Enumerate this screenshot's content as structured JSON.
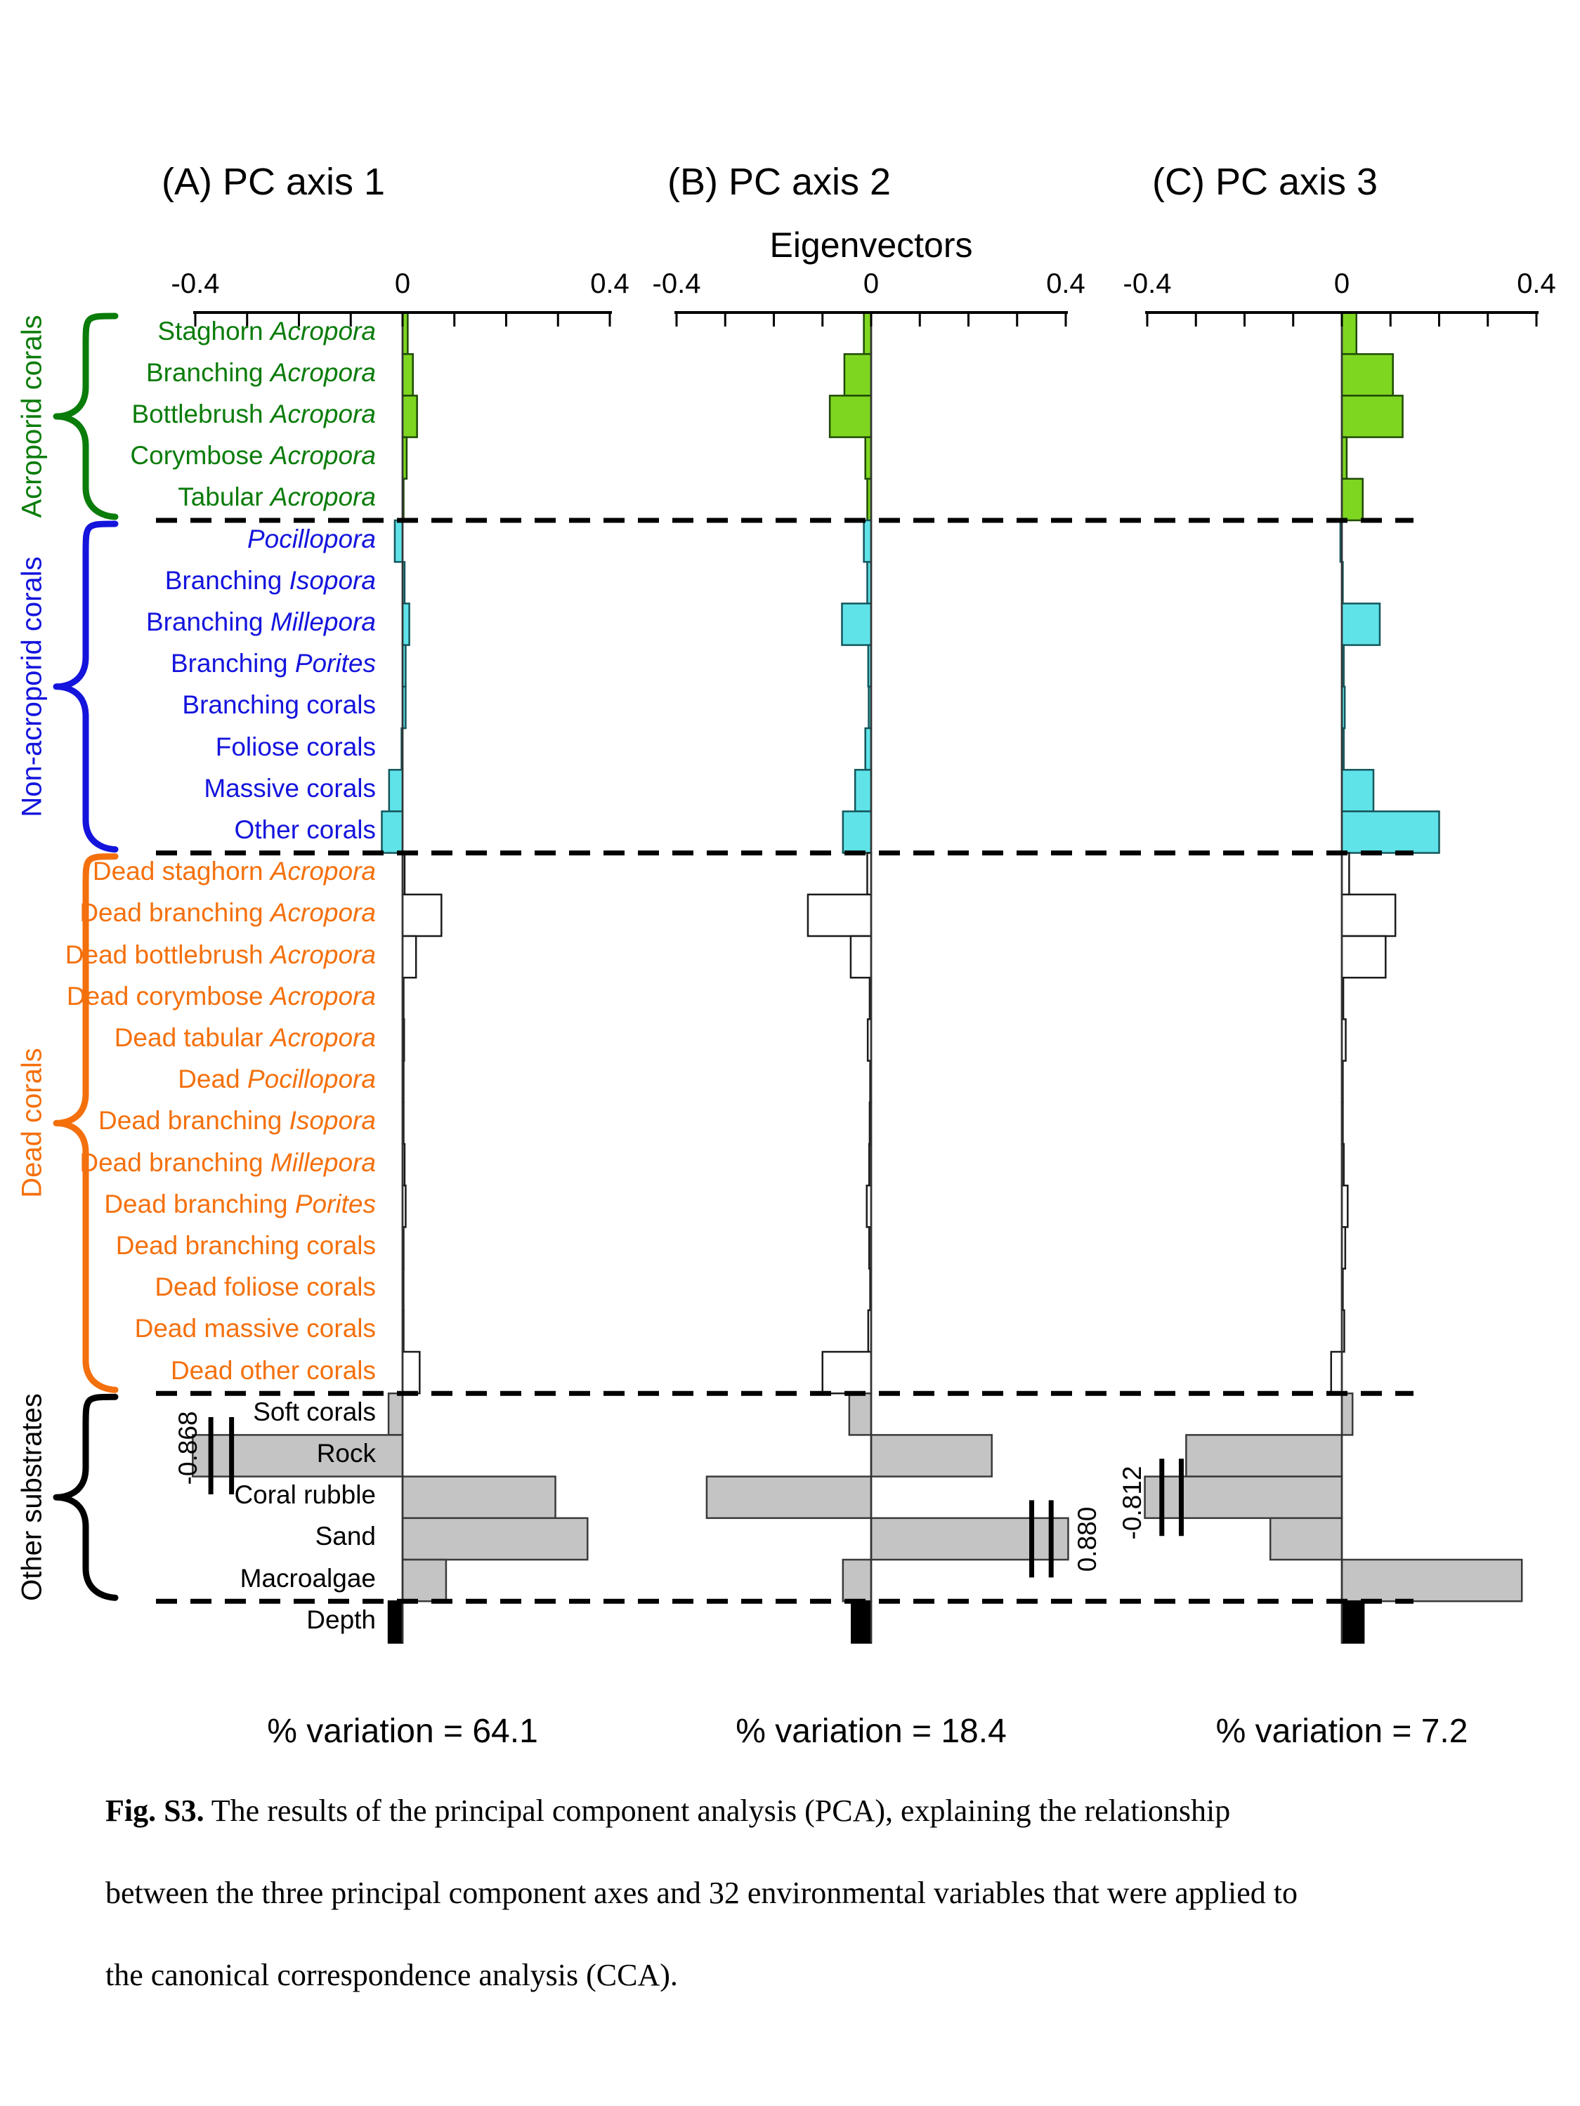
{
  "figure": {
    "panel_titles": [
      "(A) PC axis 1",
      "(B) PC axis 2",
      "(C) PC axis 3"
    ],
    "axis_title": "Eigenvectors",
    "axis_ticks": [
      "-0.4",
      "0",
      "0.4"
    ],
    "variation_labels": [
      "% variation = 64.1",
      "% variation  = 18.4",
      "% variation  = 7.2"
    ],
    "offscale_labels": [
      "-0.868",
      "0.880",
      "-0.812"
    ],
    "groups": [
      {
        "label": "Acroporid corals",
        "color": "#0a7c0a",
        "row_start": 0,
        "row_end": 4,
        "bar_fill": "#7ed621",
        "bar_stroke": "#1f4a05"
      },
      {
        "label": "Non-acroporid corals",
        "color": "#1414dd",
        "row_start": 5,
        "row_end": 12,
        "bar_fill": "#5fe3e8",
        "bar_stroke": "#14565c"
      },
      {
        "label": "Dead corals",
        "color": "#f4700d",
        "row_start": 13,
        "row_end": 25,
        "bar_fill": "#ffffff",
        "bar_stroke": "#1a1a1a"
      },
      {
        "label": "Other substrates",
        "color": "#000000",
        "row_start": 26,
        "row_end": 30,
        "bar_fill": "#c4c4c4",
        "bar_stroke": "#3a3a3a"
      }
    ],
    "depth_bar_fill": "#000000",
    "rows": [
      {
        "plain": "Staghorn ",
        "italic": "Acropora"
      },
      {
        "plain": "Branching ",
        "italic": "Acropora"
      },
      {
        "plain": "Bottlebrush ",
        "italic": "Acropora"
      },
      {
        "plain": "Corymbose ",
        "italic": "Acropora"
      },
      {
        "plain": "Tabular ",
        "italic": "Acropora"
      },
      {
        "plain": "",
        "italic": "Pocillopora"
      },
      {
        "plain": "Branching ",
        "italic": "Isopora"
      },
      {
        "plain": "Branching ",
        "italic": "Millepora"
      },
      {
        "plain": "Branching ",
        "italic": "Porites"
      },
      {
        "plain": "Branching corals",
        "italic": ""
      },
      {
        "plain": "Foliose corals",
        "italic": ""
      },
      {
        "plain": "Massive corals",
        "italic": ""
      },
      {
        "plain": "Other corals",
        "italic": ""
      },
      {
        "plain": "Dead staghorn ",
        "italic": "Acropora"
      },
      {
        "plain": "Dead branching ",
        "italic": "Acropora"
      },
      {
        "plain": "Dead bottlebrush ",
        "italic": "Acropora"
      },
      {
        "plain": "Dead corymbose ",
        "italic": "Acropora"
      },
      {
        "plain": "Dead tabular ",
        "italic": "Acropora"
      },
      {
        "plain": "Dead ",
        "italic": "Pocillopora"
      },
      {
        "plain": "Dead branching ",
        "italic": "Isopora"
      },
      {
        "plain": "Dead branching ",
        "italic": "Millepora"
      },
      {
        "plain": "Dead branching ",
        "italic": "Porites"
      },
      {
        "plain": "Dead branching corals",
        "italic": ""
      },
      {
        "plain": "Dead foliose corals",
        "italic": ""
      },
      {
        "plain": "Dead massive corals",
        "italic": ""
      },
      {
        "plain": "Dead other corals",
        "italic": ""
      },
      {
        "plain": "Soft corals",
        "italic": ""
      },
      {
        "plain": "Rock",
        "italic": ""
      },
      {
        "plain": "Coral rubble",
        "italic": ""
      },
      {
        "plain": "Sand",
        "italic": ""
      },
      {
        "plain": "Macroalgae",
        "italic": ""
      },
      {
        "plain": "Depth",
        "italic": ""
      }
    ]
  },
  "chart_data": {
    "type": "bar",
    "orientation": "horizontal",
    "title": "Eigenvectors",
    "xlabel": "Eigenvectors",
    "ylabel": "",
    "xlim": [
      -0.4,
      0.4
    ],
    "axis_tick_step": 0.1,
    "grid": false,
    "categories": [
      "Staghorn Acropora",
      "Branching Acropora",
      "Bottlebrush Acropora",
      "Corymbose Acropora",
      "Tabular Acropora",
      "Pocillopora",
      "Branching Isopora",
      "Branching Millepora",
      "Branching Porites",
      "Branching corals",
      "Foliose corals",
      "Massive corals",
      "Other corals",
      "Dead staghorn Acropora",
      "Dead branching Acropora",
      "Dead bottlebrush Acropora",
      "Dead corymbose Acropora",
      "Dead tabular Acropora",
      "Dead Pocillopora",
      "Dead branching Isopora",
      "Dead branching Millepora",
      "Dead branching Porites",
      "Dead branching corals",
      "Dead foliose corals",
      "Dead massive corals",
      "Dead other corals",
      "Soft corals",
      "Rock",
      "Coral rubble",
      "Sand",
      "Macroalgae",
      "Depth"
    ],
    "series": [
      {
        "name": "PC axis 1",
        "pct_variation": 64.1,
        "values": [
          0.01,
          0.02,
          0.028,
          0.008,
          0.002,
          -0.015,
          0.004,
          0.013,
          0.006,
          0.006,
          -0.002,
          -0.026,
          -0.04,
          0.004,
          0.075,
          0.026,
          0.002,
          0.003,
          0.002,
          0.002,
          0.004,
          0.006,
          0.002,
          0.001,
          0.002,
          0.033,
          -0.027,
          -0.868,
          0.295,
          0.357,
          0.084,
          -0.027
        ]
      },
      {
        "name": "PC axis 2",
        "pct_variation": 18.4,
        "values": [
          -0.015,
          -0.055,
          -0.085,
          -0.012,
          -0.008,
          -0.015,
          -0.008,
          -0.06,
          -0.006,
          -0.005,
          -0.012,
          -0.033,
          -0.058,
          -0.008,
          -0.13,
          -0.042,
          -0.003,
          -0.007,
          -0.002,
          -0.003,
          -0.004,
          -0.009,
          -0.004,
          -0.002,
          -0.006,
          -0.1,
          -0.045,
          0.248,
          -0.338,
          0.88,
          -0.058,
          -0.04
        ]
      },
      {
        "name": "PC axis 3",
        "pct_variation": 7.2,
        "values": [
          0.03,
          0.105,
          0.125,
          0.01,
          0.043,
          -0.003,
          0.002,
          0.078,
          0.004,
          0.006,
          0.004,
          0.065,
          0.2,
          0.015,
          0.11,
          0.09,
          0.003,
          0.008,
          0.002,
          0.002,
          0.004,
          0.012,
          0.007,
          0.002,
          0.005,
          -0.022,
          0.022,
          -0.32,
          -0.812,
          -0.147,
          0.37,
          0.045
        ]
      }
    ],
    "offscale": [
      {
        "series": "PC axis 1",
        "category": "Rock",
        "value": -0.868,
        "label": "-0.868"
      },
      {
        "series": "PC axis 2",
        "category": "Sand",
        "value": 0.88,
        "label": "0.880"
      },
      {
        "series": "PC axis 3",
        "category": "Coral rubble",
        "value": -0.812,
        "label": "-0.812"
      }
    ],
    "annotations": [
      "% variation = 64.1",
      "% variation  = 18.4",
      "% variation  = 7.2"
    ]
  },
  "caption": {
    "fig_label": "Fig. S3.",
    "line1": " The results of the principal component analysis (PCA), explaining the relationship",
    "line2": "between the three principal component axes and 32 environmental variables that were applied to",
    "line3": "the canonical correspondence analysis (CCA)."
  }
}
